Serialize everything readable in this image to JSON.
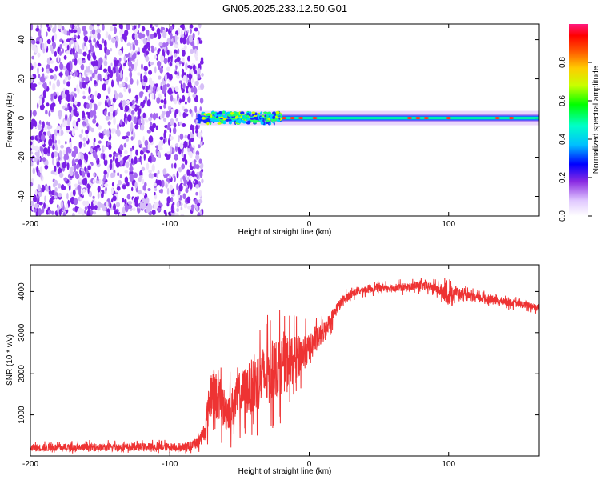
{
  "title": "GN05.2025.233.12.50.G01",
  "chart_data": [
    {
      "type": "heatmap",
      "xlabel": "Height of straight line (km)",
      "ylabel": "Frequency (Hz)",
      "xlim": [
        -200,
        165
      ],
      "ylim": [
        -50,
        48
      ],
      "xticks": [
        -200,
        -100,
        0,
        100
      ],
      "yticks": [
        -40,
        -20,
        0,
        20,
        40
      ],
      "colorbar": {
        "label": "Normalized spectral amplitude",
        "range": [
          0,
          1
        ],
        "ticks": [
          0.0,
          0.2,
          0.4,
          0.6,
          0.8
        ]
      },
      "regions": [
        {
          "x": [
            -200,
            -80
          ],
          "description": "broadband noise",
          "amplitude": 0.1
        },
        {
          "x": [
            -80,
            165
          ],
          "frequency_center": 0,
          "amplitude": 0.6
        }
      ]
    },
    {
      "type": "line",
      "xlabel": "Height of straight line (km)",
      "ylabel": "SNR (10 * v/v)",
      "xlim": [
        -200,
        165
      ],
      "ylim": [
        0,
        4650
      ],
      "xticks": [
        -200,
        -100,
        0,
        100
      ],
      "yticks": [
        1000,
        2000,
        3000,
        4000
      ],
      "color": "#ee3333",
      "series": [
        {
          "x": [
            -200,
            -90,
            -85,
            -80,
            -75,
            -70,
            -65,
            -60,
            -55,
            -50,
            -45,
            -40,
            -35,
            -30,
            -25,
            -20,
            -15,
            -10,
            -5,
            0,
            5,
            10,
            15,
            20,
            25,
            30,
            40,
            50,
            60,
            70,
            80,
            90,
            95,
            100,
            105,
            110,
            120,
            130,
            140,
            150,
            160,
            165
          ],
          "y": [
            200,
            220,
            250,
            320,
            600,
            1600,
            1400,
            1100,
            1200,
            1500,
            1600,
            1700,
            1900,
            1950,
            2100,
            2200,
            2300,
            2350,
            2500,
            2600,
            2800,
            3000,
            3300,
            3600,
            3800,
            3950,
            4050,
            4100,
            4100,
            4100,
            4150,
            4100,
            4000,
            3900,
            4000,
            3900,
            3850,
            3800,
            3750,
            3700,
            3650,
            3600
          ],
          "spread": [
            180,
            200,
            220,
            250,
            500,
            1300,
            1100,
            1000,
            1000,
            1100,
            1200,
            1400,
            1500,
            1500,
            1500,
            1400,
            1300,
            1100,
            900,
            700,
            600,
            500,
            400,
            300,
            250,
            200,
            200,
            200,
            200,
            200,
            220,
            250,
            300,
            500,
            300,
            250,
            200,
            200,
            180,
            180,
            180,
            180
          ]
        }
      ]
    }
  ]
}
